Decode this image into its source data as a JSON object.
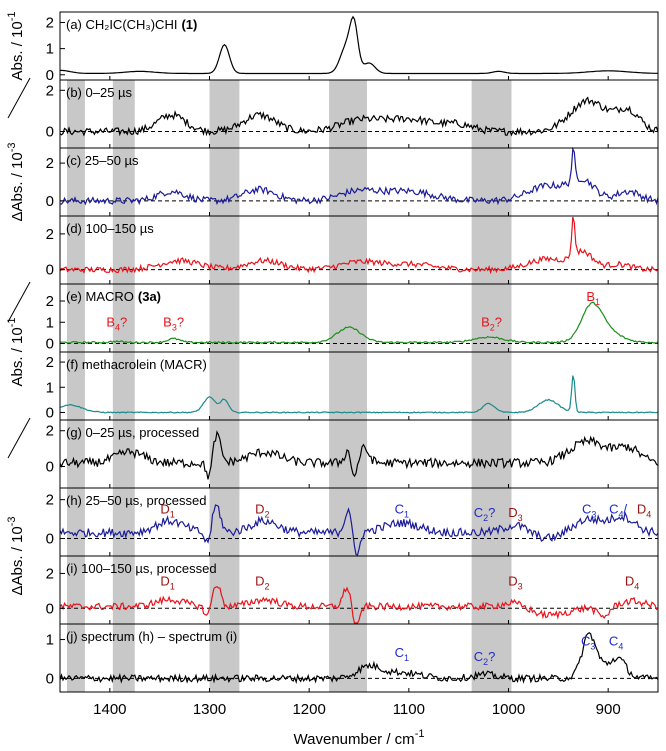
{
  "chart_data": {
    "type": "line",
    "title": "",
    "xlabel": "Wavenumber / cm",
    "xlabel_sup": "-1",
    "xlim": [
      1450,
      850
    ],
    "x_ticks": [
      1400,
      1300,
      1200,
      1100,
      1000,
      900
    ],
    "x_tick_labels": [
      "1400",
      "1300",
      "1200",
      "1100",
      "1000",
      "900"
    ],
    "shaded_bands": [
      [
        1443,
        1425
      ],
      [
        1397,
        1375
      ],
      [
        1300,
        1270
      ],
      [
        1180,
        1142
      ],
      [
        1037,
        997
      ]
    ],
    "ylabels": [
      {
        "text": "Abs. / 10",
        "sup": "-1",
        "panels": [
          "a"
        ]
      },
      {
        "text": "ΔAbs. / 10",
        "sup": "-3",
        "panels": [
          "b",
          "c",
          "d"
        ]
      },
      {
        "text": "Abs. / 10",
        "sup": "-1",
        "panels": [
          "e",
          "f"
        ]
      },
      {
        "text": "ΔAbs. / 10",
        "sup": "-3",
        "panels": [
          "g",
          "h",
          "i",
          "j"
        ]
      }
    ],
    "panels": [
      {
        "id": "a",
        "label": "(a) CH₂IC(CH₃)CHI",
        "label_bold": "(1)",
        "color": "#000000",
        "ylim": [
          -0.2,
          2.4
        ],
        "yticks": [
          0,
          1,
          2
        ],
        "ytick_labels": [
          "0",
          "1",
          "2"
        ],
        "zero_line": false,
        "annotations": []
      },
      {
        "id": "b",
        "label": "(b) 0–25 µs",
        "label_bold": "",
        "color": "#000000",
        "ylim": [
          -0.8,
          2.5
        ],
        "yticks": [
          0,
          2
        ],
        "ytick_labels": [
          "0",
          "2"
        ],
        "zero_line": true,
        "annotations": []
      },
      {
        "id": "c",
        "label": "(c) 25–50 µs",
        "label_bold": "",
        "color": "#1c1c99",
        "ylim": [
          -0.8,
          2.8
        ],
        "yticks": [
          0,
          2
        ],
        "ytick_labels": [
          "0",
          "2"
        ],
        "zero_line": true,
        "annotations": []
      },
      {
        "id": "d",
        "label": "(d) 100–150 µs",
        "label_bold": "",
        "color": "#e8141c",
        "ylim": [
          -0.8,
          3.0
        ],
        "yticks": [
          0,
          2
        ],
        "ytick_labels": [
          "0",
          "2"
        ],
        "zero_line": true,
        "annotations": []
      },
      {
        "id": "e",
        "label": "(e) MACRO",
        "label_bold": "(3a)",
        "color": "#1b8f1b",
        "ylim": [
          -0.4,
          2.8
        ],
        "yticks": [
          0,
          1,
          2
        ],
        "ytick_labels": [
          "0",
          "1",
          "2"
        ],
        "zero_line": true,
        "annotations": [
          {
            "x": 1393,
            "text": "B",
            "sub": "4",
            "suffix": "?",
            "color": "#e8141c",
            "y": 0.8
          },
          {
            "x": 1336,
            "text": "B",
            "sub": "3",
            "suffix": "?",
            "color": "#e8141c",
            "y": 0.8
          },
          {
            "x": 1017,
            "text": "B",
            "sub": "2",
            "suffix": "?",
            "color": "#e8141c",
            "y": 0.8
          },
          {
            "x": 915,
            "text": "B",
            "sub": "1",
            "suffix": "",
            "color": "#e8141c",
            "y": 2.0
          }
        ]
      },
      {
        "id": "f",
        "label": "(f) methacrolein (MACR)",
        "label_bold": "",
        "color": "#1a8a8a",
        "ylim": [
          -0.3,
          2.4
        ],
        "yticks": [
          0,
          1,
          2
        ],
        "ytick_labels": [
          "0",
          "1",
          "2"
        ],
        "zero_line": false,
        "annotations": []
      },
      {
        "id": "g",
        "label": "(g) 0–25 µs, processed",
        "label_bold": "",
        "color": "#000000",
        "ylim": [
          -1.2,
          2.6
        ],
        "yticks": [
          0,
          2
        ],
        "ytick_labels": [
          "0",
          "2"
        ],
        "zero_line": false,
        "annotations": []
      },
      {
        "id": "h",
        "label": "(h) 25–50 µs, processed",
        "label_bold": "",
        "color": "#1c1c99",
        "ylim": [
          -0.9,
          2.6
        ],
        "yticks": [
          0,
          2
        ],
        "ytick_labels": [
          "0",
          "2"
        ],
        "zero_line": true,
        "annotations": [
          {
            "x": 1342,
            "text": "D",
            "sub": "1",
            "suffix": "",
            "color": "#9a1212",
            "y": 1.3
          },
          {
            "x": 1247,
            "text": "D",
            "sub": "2",
            "suffix": "",
            "color": "#9a1212",
            "y": 1.3
          },
          {
            "x": 1107,
            "text": "C",
            "sub": "1",
            "suffix": "",
            "color": "#1d2bc8",
            "y": 1.3
          },
          {
            "x": 1024,
            "text": "C",
            "sub": "2",
            "suffix": "?",
            "color": "#1d2bc8",
            "y": 1.1
          },
          {
            "x": 993,
            "text": "D",
            "sub": "3",
            "suffix": "",
            "color": "#9a1212",
            "y": 1.1
          },
          {
            "x": 919,
            "text": "C",
            "sub": "3",
            "suffix": "",
            "color": "#1d2bc8",
            "y": 1.3
          },
          {
            "x": 890,
            "text": "C",
            "sub": "4",
            "suffix": "/",
            "color": "#1d2bc8",
            "y": 1.3
          },
          {
            "x": 864,
            "text": "D",
            "sub": "4",
            "suffix": "",
            "color": "#9a1212",
            "y": 1.3
          }
        ]
      },
      {
        "id": "i",
        "label": "(i) 100–150 µs, processed",
        "label_bold": "",
        "color": "#e8141c",
        "ylim": [
          -0.9,
          3.0
        ],
        "yticks": [
          0,
          2
        ],
        "ytick_labels": [
          "0",
          "2"
        ],
        "zero_line": true,
        "annotations": [
          {
            "x": 1342,
            "text": "D",
            "sub": "1",
            "suffix": "",
            "color": "#9a1212",
            "y": 1.3
          },
          {
            "x": 1247,
            "text": "D",
            "sub": "2",
            "suffix": "",
            "color": "#9a1212",
            "y": 1.3
          },
          {
            "x": 993,
            "text": "D",
            "sub": "3",
            "suffix": "",
            "color": "#9a1212",
            "y": 1.3
          },
          {
            "x": 876,
            "text": "D",
            "sub": "4",
            "suffix": "",
            "color": "#9a1212",
            "y": 1.3
          }
        ]
      },
      {
        "id": "j",
        "label": "(j) spectrum (h) – spectrum (i)",
        "label_bold": "",
        "color": "#000000",
        "ylim": [
          -0.35,
          1.4
        ],
        "yticks": [
          0,
          1
        ],
        "ytick_labels": [
          "0",
          "1"
        ],
        "zero_line": true,
        "annotations": [
          {
            "x": 1107,
            "text": "C",
            "sub": "1",
            "suffix": "",
            "color": "#1d2bc8",
            "y": 0.55
          },
          {
            "x": 1024,
            "text": "C",
            "sub": "2",
            "suffix": "?",
            "color": "#1d2bc8",
            "y": 0.45
          },
          {
            "x": 920,
            "text": "C",
            "sub": "3",
            "suffix": "",
            "color": "#1d2bc8",
            "y": 0.85
          },
          {
            "x": 892,
            "text": "C",
            "sub": "4",
            "suffix": "",
            "color": "#1d2bc8",
            "y": 0.85
          }
        ]
      }
    ],
    "series_features": {
      "a": {
        "base": 0.05,
        "noise": 0.0,
        "peaks": [
          [
            1450,
            0.12,
            10
          ],
          [
            1370,
            0.08,
            15
          ],
          [
            1285,
            1.1,
            5
          ],
          [
            1163,
            1.0,
            6
          ],
          [
            1155,
            1.7,
            4
          ],
          [
            1140,
            0.4,
            6
          ],
          [
            1010,
            0.08,
            6
          ],
          [
            900,
            0.1,
            20
          ]
        ]
      },
      "b": {
        "base": 0.0,
        "noise": 0.18,
        "bumps": [
          [
            1338,
            0.8,
            14
          ],
          [
            1250,
            0.8,
            16
          ],
          [
            1150,
            0.5,
            20
          ],
          [
            1100,
            0.6,
            25
          ],
          [
            1050,
            0.3,
            15
          ],
          [
            920,
            1.5,
            18
          ],
          [
            880,
            1.0,
            12
          ]
        ]
      },
      "c": {
        "base": 0.0,
        "noise": 0.18,
        "bumps": [
          [
            1338,
            0.5,
            14
          ],
          [
            1250,
            0.6,
            16
          ],
          [
            1150,
            0.5,
            20
          ],
          [
            1100,
            0.5,
            25
          ],
          [
            960,
            0.8,
            20
          ],
          [
            925,
            1.0,
            12
          ],
          [
            880,
            0.5,
            12
          ]
        ],
        "spikes": [
          [
            935,
            1.6
          ]
        ]
      },
      "d": {
        "base": 0.0,
        "noise": 0.16,
        "bumps": [
          [
            1330,
            0.5,
            20
          ],
          [
            1245,
            0.5,
            18
          ],
          [
            1150,
            0.4,
            20
          ],
          [
            1100,
            0.3,
            25
          ],
          [
            960,
            0.6,
            20
          ],
          [
            925,
            0.9,
            10
          ],
          [
            890,
            0.3,
            12
          ]
        ],
        "spikes": [
          [
            935,
            2.2
          ]
        ]
      },
      "e": {
        "base": 0.05,
        "noise": 0.04,
        "bumps": [
          [
            1393,
            0.05,
            6
          ],
          [
            1336,
            0.18,
            6
          ],
          [
            1160,
            0.7,
            12
          ],
          [
            1020,
            0.25,
            15
          ],
          [
            917,
            1.4,
            10
          ],
          [
            905,
            0.6,
            15
          ]
        ]
      },
      "f": {
        "base": 0.0,
        "noise": 0.02,
        "bumps": [
          [
            1440,
            0.3,
            12
          ],
          [
            1300,
            0.6,
            6
          ],
          [
            1285,
            0.5,
            4
          ],
          [
            1020,
            0.35,
            6
          ],
          [
            960,
            0.5,
            10
          ]
        ],
        "spikes": [
          [
            935,
            1.5
          ]
        ]
      },
      "g": {
        "base": 0.2,
        "noise": 0.25,
        "bumps": [
          [
            1380,
            0.6,
            14
          ],
          [
            1293,
            1.6,
            4
          ],
          [
            1300,
            -1.0,
            3
          ],
          [
            1245,
            0.6,
            16
          ],
          [
            1160,
            0.8,
            4
          ],
          [
            1155,
            -1.2,
            3
          ],
          [
            1145,
            0.8,
            5
          ],
          [
            920,
            1.2,
            18
          ],
          [
            880,
            0.8,
            12
          ]
        ]
      },
      "h": {
        "base": 0.3,
        "noise": 0.22,
        "bumps": [
          [
            1340,
            0.6,
            14
          ],
          [
            1293,
            1.4,
            4
          ],
          [
            1302,
            -0.6,
            3
          ],
          [
            1245,
            0.6,
            14
          ],
          [
            1160,
            1.3,
            4
          ],
          [
            1153,
            -1.6,
            3
          ],
          [
            1107,
            0.5,
            18
          ],
          [
            993,
            0.4,
            12
          ],
          [
            960,
            -0.3,
            15
          ],
          [
            920,
            0.7,
            15
          ],
          [
            885,
            0.8,
            12
          ]
        ]
      },
      "i": {
        "base": 0.1,
        "noise": 0.2,
        "bumps": [
          [
            1340,
            0.4,
            14
          ],
          [
            1293,
            1.3,
            4
          ],
          [
            1302,
            -0.6,
            3
          ],
          [
            1245,
            0.4,
            14
          ],
          [
            1162,
            1.1,
            4
          ],
          [
            1153,
            -1.6,
            3
          ],
          [
            993,
            0.3,
            12
          ],
          [
            960,
            -0.5,
            20
          ],
          [
            905,
            -0.6,
            6
          ],
          [
            876,
            0.3,
            12
          ]
        ]
      },
      "j": {
        "base": 0.0,
        "noise": 0.09,
        "bumps": [
          [
            1140,
            0.3,
            12
          ],
          [
            1107,
            0.15,
            18
          ],
          [
            1024,
            0.1,
            12
          ],
          [
            920,
            0.7,
            6
          ],
          [
            915,
            0.5,
            10
          ],
          [
            890,
            0.5,
            8
          ]
        ]
      }
    }
  }
}
